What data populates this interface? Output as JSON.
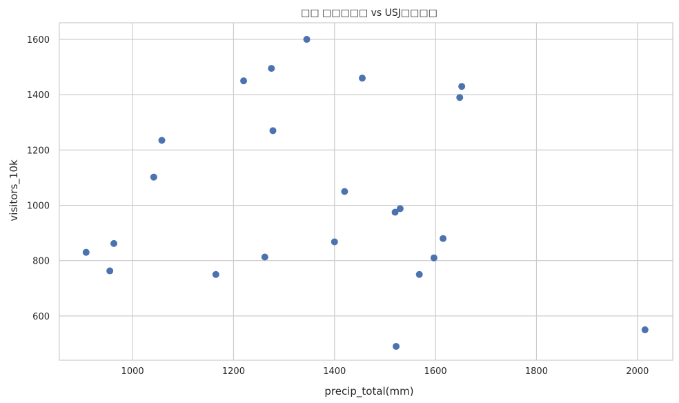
{
  "chart_data": {
    "type": "scatter",
    "title": "□□ □□□□□ vs USJ□□□□",
    "xlabel": "precip_total(mm)",
    "ylabel": "visitors_10k",
    "xlim": [
      855,
      2070
    ],
    "ylim": [
      440,
      1660
    ],
    "xticks": [
      1000,
      1200,
      1400,
      1600,
      1800,
      2000
    ],
    "yticks": [
      600,
      800,
      1000,
      1200,
      1400,
      1600
    ],
    "grid": true,
    "marker_color": "#4c72b0",
    "points": [
      {
        "x": 1345,
        "y": 1600
      },
      {
        "x": 1275,
        "y": 1495
      },
      {
        "x": 1455,
        "y": 1460
      },
      {
        "x": 1220,
        "y": 1450
      },
      {
        "x": 1652,
        "y": 1430
      },
      {
        "x": 1648,
        "y": 1390
      },
      {
        "x": 1278,
        "y": 1270
      },
      {
        "x": 1058,
        "y": 1235
      },
      {
        "x": 1042,
        "y": 1102
      },
      {
        "x": 1420,
        "y": 1050
      },
      {
        "x": 1530,
        "y": 988
      },
      {
        "x": 1520,
        "y": 975
      },
      {
        "x": 1615,
        "y": 880
      },
      {
        "x": 1400,
        "y": 868
      },
      {
        "x": 963,
        "y": 862
      },
      {
        "x": 908,
        "y": 830
      },
      {
        "x": 1262,
        "y": 813
      },
      {
        "x": 1597,
        "y": 810
      },
      {
        "x": 955,
        "y": 763
      },
      {
        "x": 1165,
        "y": 750
      },
      {
        "x": 1568,
        "y": 750
      },
      {
        "x": 2015,
        "y": 550
      },
      {
        "x": 1522,
        "y": 490
      }
    ]
  }
}
